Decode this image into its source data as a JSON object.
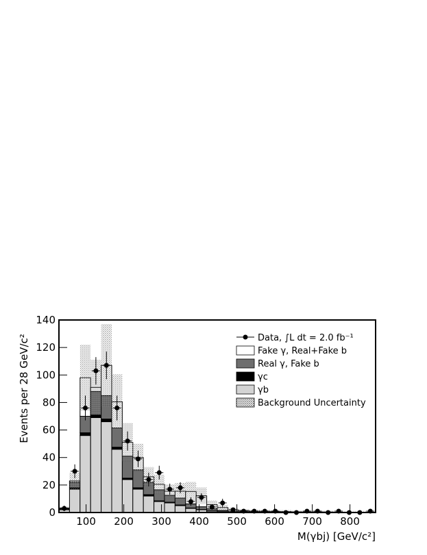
{
  "chart_data": {
    "type": "stacked_histogram",
    "x_label": "M(γbj) [GeV/c²]",
    "y_label": "Events per 28 GeV/c²",
    "bins": [
      28,
      56,
      84,
      112,
      140,
      168,
      196,
      224,
      252,
      280,
      308,
      336,
      364,
      392,
      420,
      448,
      476,
      504,
      532,
      560,
      588,
      616,
      644,
      672,
      700,
      728,
      756,
      784,
      812,
      840,
      868
    ],
    "series": [
      {
        "name": "γb",
        "color": "#d3d3d3",
        "values": [
          2,
          17,
          56,
          69,
          66,
          46,
          24,
          17,
          12,
          8,
          7,
          5,
          3,
          2,
          1,
          0.5,
          0.3,
          0.2,
          0.2,
          0.1,
          0.1,
          0.1,
          0.1,
          0,
          0,
          0,
          0,
          0,
          0,
          0
        ]
      },
      {
        "name": "γc",
        "color": "#000000",
        "values": [
          0.3,
          1,
          2,
          2,
          2,
          1.5,
          1,
          1,
          1,
          0.5,
          0.5,
          0.5,
          0.3,
          0.2,
          0.2,
          0.1,
          0.1,
          0,
          0,
          0,
          0,
          0,
          0,
          0,
          0,
          0,
          0,
          0,
          0,
          0
        ]
      },
      {
        "name": "Real γ, Fake b",
        "color": "#6e6e6e",
        "values": [
          0.5,
          4,
          12,
          17,
          17,
          14,
          16,
          13,
          9,
          8,
          5,
          5,
          3,
          2,
          1.5,
          1,
          0.5,
          0.4,
          0.3,
          0.3,
          0.2,
          0.2,
          0.1,
          0.1,
          0.1,
          0.1,
          0,
          0,
          0,
          0
        ]
      },
      {
        "name": "Fake γ, Real+Fake b",
        "color": "#ffffff",
        "values": [
          0.5,
          1,
          28,
          3,
          22,
          19,
          10,
          9,
          4,
          4,
          3,
          5,
          9,
          8,
          3,
          2,
          1,
          0.8,
          0.5,
          0.5,
          0.4,
          0.4,
          0.3,
          0.3,
          0.3,
          0.3,
          0.2,
          0.2,
          0.2,
          0.2
        ]
      }
    ],
    "uncertainty": {
      "name": "Background Uncertainty",
      "color": "#777777",
      "values": [
        1,
        6,
        24,
        20,
        30,
        20,
        14,
        10,
        7,
        7,
        5,
        6,
        7,
        6,
        3,
        2,
        1.5,
        1,
        1,
        1,
        1,
        1,
        1,
        1,
        1,
        1,
        1,
        1,
        1,
        1
      ]
    },
    "data": {
      "name": "Data, ∫L dt = 2.0 fb⁻¹",
      "color": "#000000",
      "values": [
        3,
        30,
        76,
        103,
        107,
        76,
        52,
        39,
        24,
        29,
        17,
        18,
        8,
        11,
        4,
        7,
        2,
        1,
        1,
        1,
        1,
        0,
        0,
        1,
        1,
        0,
        1,
        0,
        0,
        1
      ],
      "errors": [
        2,
        5,
        9,
        10,
        10,
        9,
        7,
        6,
        5,
        5,
        4,
        4,
        3,
        3,
        2,
        3,
        1.4,
        1,
        1,
        1,
        1,
        0,
        0,
        1,
        1,
        0,
        1,
        0,
        0,
        1
      ]
    },
    "xlim": [
      28,
      868
    ],
    "ylim": [
      0,
      140
    ],
    "xticks": [
      100,
      200,
      300,
      400,
      500,
      600,
      700,
      800
    ],
    "yticks": [
      0,
      20,
      40,
      60,
      80,
      100,
      120,
      140
    ],
    "legend": "upper right"
  }
}
